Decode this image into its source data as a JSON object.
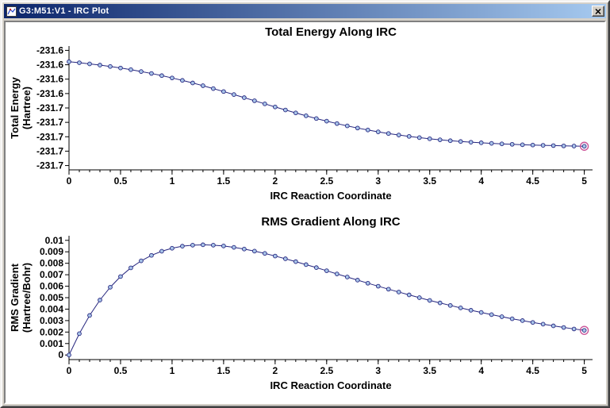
{
  "window": {
    "title": "G3:M51:V1 - IRC Plot"
  },
  "chart_data": [
    {
      "type": "line",
      "title": "Total Energy Along IRC",
      "xlabel": "IRC Reaction Coordinate",
      "ylabel_lines": [
        "Total Energy",
        "(Hartree)"
      ],
      "xlim": [
        0,
        5.08
      ],
      "ylim": [
        -231.746,
        -231.574
      ],
      "x_ticks": [
        {
          "v": 0,
          "l": "0"
        },
        {
          "v": 0.5,
          "l": "0.5"
        },
        {
          "v": 1,
          "l": "1"
        },
        {
          "v": 1.5,
          "l": "1.5"
        },
        {
          "v": 2,
          "l": "2"
        },
        {
          "v": 2.5,
          "l": "2.5"
        },
        {
          "v": 3,
          "l": "3"
        },
        {
          "v": 3.5,
          "l": "3.5"
        },
        {
          "v": 4,
          "l": "4"
        },
        {
          "v": 4.5,
          "l": "4.5"
        },
        {
          "v": 5,
          "l": "5"
        }
      ],
      "x_minor": {
        "step": 0.1,
        "max": 5
      },
      "y_ticks": [
        {
          "v": -231.58,
          "l": "-231.6"
        },
        {
          "v": -231.6,
          "l": "-231.6"
        },
        {
          "v": -231.62,
          "l": "-231.6"
        },
        {
          "v": -231.64,
          "l": "-231.6"
        },
        {
          "v": -231.66,
          "l": "-231.7"
        },
        {
          "v": -231.68,
          "l": "-231.7"
        },
        {
          "v": -231.7,
          "l": "-231.7"
        },
        {
          "v": -231.72,
          "l": "-231.7"
        },
        {
          "v": -231.74,
          "l": "-231.7"
        }
      ],
      "x": [
        0,
        0.1,
        0.2,
        0.3,
        0.4,
        0.5,
        0.6,
        0.7,
        0.8,
        0.9,
        1.0,
        1.1,
        1.2,
        1.3,
        1.4,
        1.5,
        1.6,
        1.7,
        1.8,
        1.9,
        2.0,
        2.1,
        2.2,
        2.3,
        2.4,
        2.5,
        2.6,
        2.7,
        2.8,
        2.9,
        3.0,
        3.1,
        3.2,
        3.3,
        3.4,
        3.5,
        3.6,
        3.7,
        3.8,
        3.9,
        4.0,
        4.1,
        4.2,
        4.3,
        4.4,
        4.5,
        4.6,
        4.7,
        4.8,
        4.9,
        5.0
      ],
      "y": [
        -231.5958,
        -231.5972,
        -231.5988,
        -231.6005,
        -231.6024,
        -231.6045,
        -231.6068,
        -231.6094,
        -231.6121,
        -231.6151,
        -231.6183,
        -231.6217,
        -231.6253,
        -231.6291,
        -231.6331,
        -231.6372,
        -231.6414,
        -231.6457,
        -231.65,
        -231.6543,
        -231.6586,
        -231.6628,
        -231.6669,
        -231.6709,
        -231.6747,
        -231.6783,
        -231.6817,
        -231.6849,
        -231.6879,
        -231.6906,
        -231.6932,
        -231.6955,
        -231.6976,
        -231.6995,
        -231.7012,
        -231.7028,
        -231.7042,
        -231.7055,
        -231.7066,
        -231.7076,
        -231.7084,
        -231.7092,
        -231.7099,
        -231.7105,
        -231.7111,
        -231.7115,
        -231.7119,
        -231.7123,
        -231.7127,
        -231.7129,
        -231.7132
      ],
      "line_color": "#26267f",
      "marker_fill": "#a8c4e8",
      "marker_stroke": "#26267f",
      "highlight_color": "#cc5599"
    },
    {
      "type": "line",
      "title": "RMS Gradient Along IRC",
      "xlabel": "IRC Reaction Coordinate",
      "ylabel_lines": [
        "RMS Gradient",
        "(Hartree/Bohr)"
      ],
      "xlim": [
        0,
        5.08
      ],
      "ylim": [
        -0.0004,
        0.0104
      ],
      "x_ticks": [
        {
          "v": 0,
          "l": "0"
        },
        {
          "v": 0.5,
          "l": "0.5"
        },
        {
          "v": 1,
          "l": "1"
        },
        {
          "v": 1.5,
          "l": "1.5"
        },
        {
          "v": 2,
          "l": "2"
        },
        {
          "v": 2.5,
          "l": "2.5"
        },
        {
          "v": 3,
          "l": "3"
        },
        {
          "v": 3.5,
          "l": "3.5"
        },
        {
          "v": 4,
          "l": "4"
        },
        {
          "v": 4.5,
          "l": "4.5"
        },
        {
          "v": 5,
          "l": "5"
        }
      ],
      "x_minor": {
        "step": 0.1,
        "max": 5
      },
      "y_ticks": [
        {
          "v": 0,
          "l": "0"
        },
        {
          "v": 0.001,
          "l": "0.001"
        },
        {
          "v": 0.002,
          "l": "0.002"
        },
        {
          "v": 0.003,
          "l": "0.003"
        },
        {
          "v": 0.004,
          "l": "0.004"
        },
        {
          "v": 0.005,
          "l": "0.005"
        },
        {
          "v": 0.006,
          "l": "0.006"
        },
        {
          "v": 0.007,
          "l": "0.007"
        },
        {
          "v": 0.008,
          "l": "0.008"
        },
        {
          "v": 0.009,
          "l": "0.009"
        },
        {
          "v": 0.01,
          "l": "0.01"
        }
      ],
      "x": [
        0,
        0.1,
        0.2,
        0.3,
        0.4,
        0.5,
        0.6,
        0.7,
        0.8,
        0.9,
        1.0,
        1.1,
        1.2,
        1.3,
        1.4,
        1.5,
        1.6,
        1.7,
        1.8,
        1.9,
        2.0,
        2.1,
        2.2,
        2.3,
        2.4,
        2.5,
        2.6,
        2.7,
        2.8,
        2.9,
        3.0,
        3.1,
        3.2,
        3.3,
        3.4,
        3.5,
        3.6,
        3.7,
        3.8,
        3.9,
        4.0,
        4.1,
        4.2,
        4.3,
        4.4,
        4.5,
        4.6,
        4.7,
        4.8,
        4.9,
        5.0
      ],
      "y": [
        0,
        0.00186,
        0.00345,
        0.00479,
        0.00591,
        0.00684,
        0.0076,
        0.00821,
        0.00869,
        0.00905,
        0.00931,
        0.00949,
        0.00958,
        0.00961,
        0.00958,
        0.00951,
        0.00939,
        0.00924,
        0.00906,
        0.00886,
        0.00863,
        0.00839,
        0.00814,
        0.00788,
        0.00762,
        0.00735,
        0.00707,
        0.0068,
        0.00653,
        0.00626,
        0.006,
        0.00574,
        0.00549,
        0.00524,
        0.005,
        0.00476,
        0.00454,
        0.00432,
        0.00411,
        0.0039,
        0.00371,
        0.00352,
        0.00334,
        0.00316,
        0.003,
        0.00284,
        0.00269,
        0.00254,
        0.0024,
        0.00227,
        0.00215
      ],
      "line_color": "#26267f",
      "marker_fill": "#a8c4e8",
      "marker_stroke": "#26267f",
      "highlight_color": "#cc5599"
    }
  ]
}
